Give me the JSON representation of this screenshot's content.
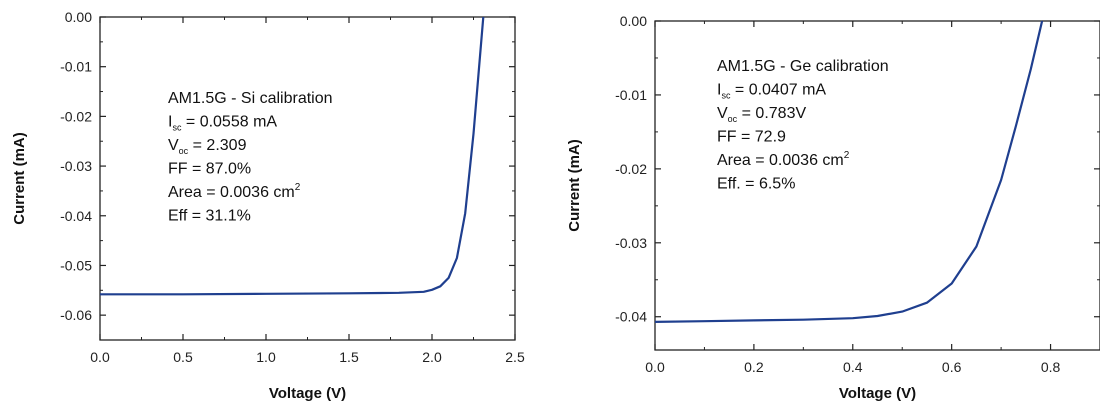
{
  "chart_data": [
    {
      "type": "line",
      "title": "",
      "xlabel": "Voltage (V)",
      "ylabel": "Current (mA)",
      "xlim": [
        0.0,
        2.5
      ],
      "ylim": [
        -0.065,
        0.0
      ],
      "x_ticks": [
        0.0,
        0.5,
        1.0,
        1.5,
        2.0,
        2.5
      ],
      "x_tick_labels": [
        "0.0",
        "0.5",
        "1.0",
        "1.5",
        "2.0",
        "2.5"
      ],
      "y_ticks": [
        0.0,
        -0.01,
        -0.02,
        -0.03,
        -0.04,
        -0.05,
        -0.06
      ],
      "y_tick_labels": [
        "0.00",
        "-0.01",
        "-0.02",
        "-0.03",
        "-0.04",
        "-0.05",
        "-0.06"
      ],
      "grid": false,
      "color": "#1f3f8f",
      "series": [
        {
          "x": [
            0.0,
            0.5,
            1.0,
            1.5,
            1.8,
            1.95,
            2.0,
            2.05,
            2.1,
            2.15,
            2.2,
            2.25,
            2.28,
            2.309
          ],
          "y": [
            -0.0558,
            -0.0558,
            -0.0557,
            -0.0556,
            -0.0555,
            -0.0553,
            -0.0549,
            -0.0542,
            -0.0525,
            -0.0485,
            -0.0395,
            -0.0235,
            -0.0115,
            0.0
          ]
        }
      ],
      "annotation": {
        "title": "AM1.5G - Si calibration",
        "isc_main": "I",
        "isc_sub": "sc",
        "isc_value": " = 0.0558 mA",
        "voc_main": "V",
        "voc_sub": "oc",
        "voc_value": " = 2.309",
        "ff": "FF = 87.0%",
        "area_text": "Area = 0.0036 cm",
        "area_sup": "2",
        "eff": "Eff = 31.1%"
      }
    },
    {
      "type": "line",
      "title": "",
      "xlabel": "Voltage (V)",
      "ylabel": "Current (mA)",
      "xlim": [
        0.0,
        0.9
      ],
      "ylim": [
        -0.0445,
        0.0
      ],
      "x_ticks": [
        0.0,
        0.2,
        0.4,
        0.6,
        0.8
      ],
      "x_tick_labels": [
        "0.0",
        "0.2",
        "0.4",
        "0.6",
        "0.8"
      ],
      "y_ticks": [
        0.0,
        -0.01,
        -0.02,
        -0.03,
        -0.04
      ],
      "y_tick_labels": [
        "0.00",
        "-0.01",
        "-0.02",
        "-0.03",
        "-0.04"
      ],
      "grid": false,
      "color": "#1f3f8f",
      "series": [
        {
          "x": [
            0.0,
            0.1,
            0.2,
            0.3,
            0.4,
            0.45,
            0.5,
            0.55,
            0.6,
            0.65,
            0.7,
            0.73,
            0.76,
            0.783
          ],
          "y": [
            -0.0407,
            -0.0406,
            -0.0405,
            -0.0404,
            -0.0402,
            -0.0399,
            -0.0393,
            -0.0381,
            -0.0355,
            -0.0305,
            -0.0215,
            -0.0142,
            -0.0065,
            0.0
          ]
        }
      ],
      "annotation": {
        "title": "AM1.5G - Ge calibration",
        "isc_main": "I",
        "isc_sub": "sc",
        "isc_value": " = 0.0407 mA",
        "voc_main": "V",
        "voc_sub": "oc",
        "voc_value": " = 0.783V",
        "ff": "FF = 72.9",
        "area_text": "Area = 0.0036 cm",
        "area_sup": "2",
        "eff": "Eff. = 6.5%"
      }
    }
  ]
}
